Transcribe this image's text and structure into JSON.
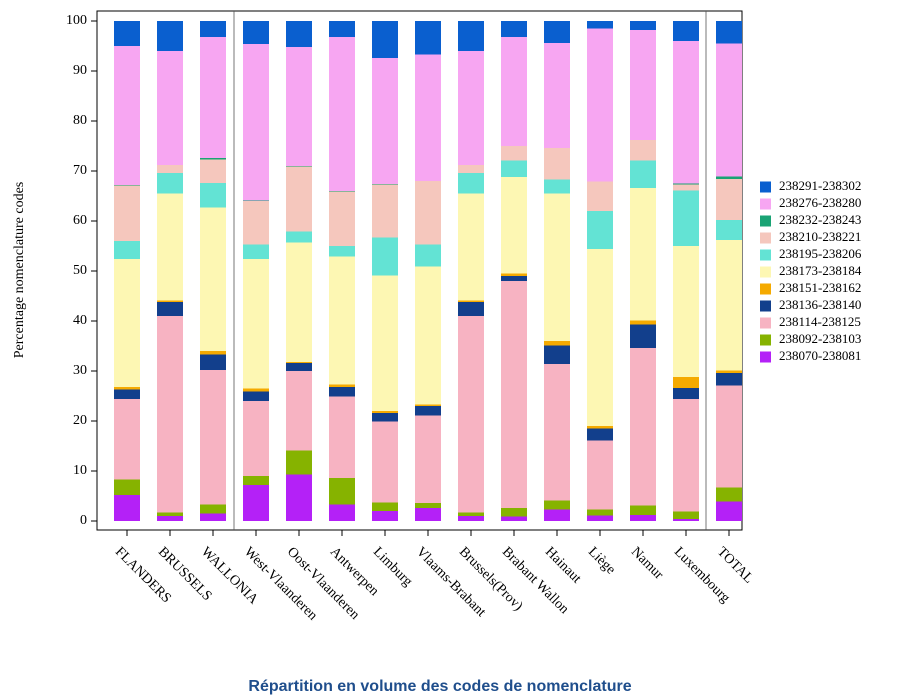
{
  "chart_data": {
    "type": "stacked_bar",
    "title": "Répartition en volume des codes de nomenclature",
    "y_label": "Percentage nomenclature codes",
    "categories": [
      "FLANDERS",
      "BRUSSELS",
      "WALLONIA",
      "West-Vlaanderen",
      "Oost-Vlaanderen",
      "Antwerpen",
      "Limburg",
      "Vlaams-Brabant",
      "Brussels(Prov)",
      "Brabant Wallon",
      "Hainaut",
      "Liège",
      "Namur",
      "Luxembourg",
      "TOTAL"
    ],
    "series": [
      {
        "name": "238070-238081",
        "color": "#b421f7",
        "values": [
          5.2,
          1.0,
          1.5,
          7.2,
          9.3,
          3.3,
          2.0,
          2.6,
          1.0,
          0.9,
          2.3,
          1.1,
          1.2,
          0.4,
          3.9
        ]
      },
      {
        "name": "238092-238103",
        "color": "#86b300",
        "values": [
          3.1,
          0.7,
          1.8,
          1.8,
          4.8,
          5.3,
          1.7,
          1.0,
          0.7,
          1.7,
          1.8,
          1.2,
          1.9,
          1.5,
          2.8
        ]
      },
      {
        "name": "238114-238125",
        "color": "#f7b3c2",
        "values": [
          16.1,
          39.3,
          26.9,
          15.0,
          15.9,
          16.3,
          16.2,
          17.5,
          39.3,
          45.4,
          27.3,
          13.8,
          31.5,
          22.5,
          20.4
        ]
      },
      {
        "name": "238136-238140",
        "color": "#123f8c",
        "values": [
          1.9,
          2.8,
          3.1,
          1.9,
          1.6,
          1.9,
          1.7,
          1.9,
          2.8,
          1.0,
          3.7,
          2.4,
          4.7,
          2.2,
          2.5
        ]
      },
      {
        "name": "238151-238162",
        "color": "#f5aa00",
        "values": [
          0.5,
          0.3,
          0.7,
          0.6,
          0.2,
          0.5,
          0.4,
          0.3,
          0.3,
          0.5,
          0.9,
          0.5,
          0.8,
          2.2,
          0.5
        ]
      },
      {
        "name": "238173-238184",
        "color": "#fdf7b3",
        "values": [
          25.6,
          21.4,
          28.7,
          25.9,
          23.9,
          25.6,
          27.1,
          27.6,
          21.4,
          19.3,
          29.5,
          35.4,
          26.5,
          26.2,
          26.1
        ]
      },
      {
        "name": "238195-238206",
        "color": "#63e3d4",
        "values": [
          3.6,
          4.1,
          4.9,
          2.9,
          2.2,
          2.1,
          7.6,
          4.4,
          4.1,
          3.3,
          2.8,
          7.6,
          5.5,
          11.1,
          4.0
        ]
      },
      {
        "name": "238210-238221",
        "color": "#f5c7bd",
        "values": [
          11.1,
          1.6,
          4.7,
          8.7,
          13.0,
          10.9,
          10.6,
          12.7,
          1.6,
          2.9,
          6.3,
          5.9,
          4.1,
          1.2,
          8.2
        ]
      },
      {
        "name": "238232-238243",
        "color": "#1aa374",
        "values": [
          0.1,
          0,
          0.3,
          0.1,
          0.1,
          0.1,
          0.1,
          0,
          0,
          0,
          0,
          0,
          0,
          0.2,
          0.5
        ]
      },
      {
        "name": "238276-238280",
        "color": "#f7a6f2",
        "values": [
          27.8,
          22.8,
          24.2,
          31.3,
          23.8,
          30.8,
          25.2,
          25.3,
          22.8,
          21.8,
          21.0,
          30.6,
          22.0,
          28.5,
          26.6
        ]
      },
      {
        "name": "238291-238302",
        "color": "#0a5fcf",
        "values": [
          5.0,
          6.0,
          3.2,
          4.6,
          5.2,
          3.2,
          7.4,
          6.7,
          6.0,
          3.2,
          4.4,
          1.5,
          1.8,
          4.0,
          4.5
        ]
      }
    ],
    "ylim": [
      0,
      100
    ],
    "yticks": [
      0,
      10,
      20,
      30,
      40,
      50,
      60,
      70,
      80,
      90,
      100
    ],
    "legend": "right"
  }
}
